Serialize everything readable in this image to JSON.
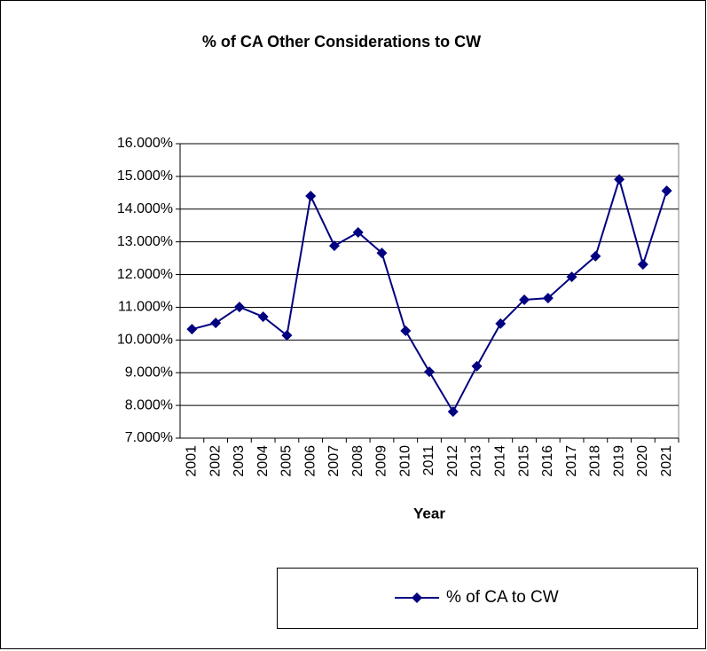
{
  "chart_data": {
    "type": "line",
    "title": "% of CA Other Considerations to CW",
    "x_label": "Year",
    "categories": [
      "2001",
      "2002",
      "2003",
      "2004",
      "2005",
      "2006",
      "2007",
      "2008",
      "2009",
      "2010",
      "2011",
      "2012",
      "2013",
      "2014",
      "2015",
      "2016",
      "2017",
      "2018",
      "2019",
      "2020",
      "2021"
    ],
    "series": [
      {
        "name": "% of CA to CW",
        "color": "#000080",
        "values": [
          10.33,
          10.52,
          11.01,
          10.71,
          10.14,
          14.4,
          12.88,
          13.29,
          12.66,
          10.28,
          9.03,
          7.81,
          9.2,
          10.5,
          11.23,
          11.28,
          11.93,
          12.56,
          14.91,
          12.31,
          14.56
        ]
      }
    ],
    "ylim": [
      7,
      16
    ],
    "yticks": [
      {
        "value": 7,
        "label": "7.000%"
      },
      {
        "value": 8,
        "label": "8.000%"
      },
      {
        "value": 9,
        "label": "9.000%"
      },
      {
        "value": 10,
        "label": "10.000%"
      },
      {
        "value": 11,
        "label": "11.000%"
      },
      {
        "value": 12,
        "label": "12.000%"
      },
      {
        "value": 13,
        "label": "13.000%"
      },
      {
        "value": 14,
        "label": "14.000%"
      },
      {
        "value": 15,
        "label": "15.000%"
      },
      {
        "value": 16,
        "label": "16.000%"
      }
    ],
    "grid": true,
    "legend": "bottom"
  }
}
